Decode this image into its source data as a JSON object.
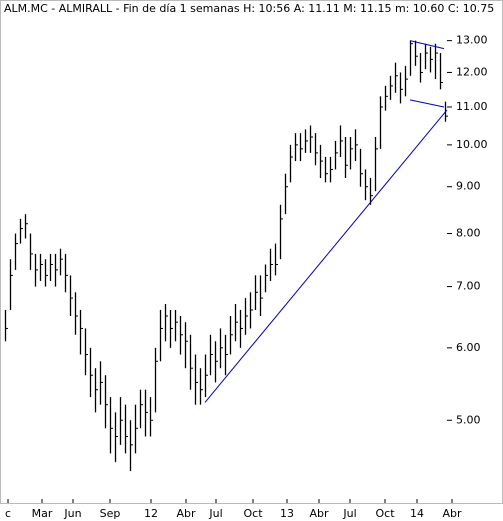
{
  "chart_data": {
    "type": "hlc",
    "title": "ALM.MC - ALMIRALL - Fin de día 1 semanas H: 10:56 A: 11.11 M: 11.15 m: 10.60 C: 10.75",
    "log_scale": true,
    "color": "#000000",
    "xlim": [
      -1,
      89
    ],
    "ylim": [
      4.06,
      14.4
    ],
    "yticks": [
      {
        "value": 5,
        "label": "5.00"
      },
      {
        "value": 6,
        "label": "6.00"
      },
      {
        "value": 7,
        "label": "7.00"
      },
      {
        "value": 8,
        "label": "8.00"
      },
      {
        "value": 9,
        "label": "9.00"
      },
      {
        "value": 10,
        "label": "10.00"
      },
      {
        "value": 11,
        "label": "11.00"
      },
      {
        "value": 12,
        "label": "12.00"
      },
      {
        "value": 13,
        "label": "13.00"
      }
    ],
    "xticks": [
      {
        "value": 0.6,
        "label": "c"
      },
      {
        "value": 7.4,
        "label": "Mar"
      },
      {
        "value": 13.6,
        "label": "Jun"
      },
      {
        "value": 21,
        "label": "Sep"
      },
      {
        "value": 29.2,
        "label": "12"
      },
      {
        "value": 36.2,
        "label": "Abr"
      },
      {
        "value": 42.2,
        "label": "Jul"
      },
      {
        "value": 49.6,
        "label": "Oct"
      },
      {
        "value": 56.4,
        "label": "13"
      },
      {
        "value": 62.8,
        "label": "Abr"
      },
      {
        "value": 69,
        "label": "Jul"
      },
      {
        "value": 76,
        "label": "Oct"
      },
      {
        "value": 82.4,
        "label": "14"
      },
      {
        "value": 89.4,
        "label": "Abr"
      }
    ],
    "high": [
      6.6,
      7.5,
      8.0,
      8.3,
      8.4,
      8.0,
      7.6,
      7.6,
      7.5,
      7.6,
      7.6,
      7.7,
      7.6,
      7.2,
      6.9,
      6.6,
      6.3,
      6.0,
      5.7,
      5.8,
      5.6,
      5.3,
      5.1,
      5.3,
      5.2,
      5.0,
      5.2,
      5.4,
      5.4,
      5.3,
      6.0,
      6.6,
      6.7,
      6.6,
      6.6,
      6.5,
      6.4,
      6.2,
      5.9,
      5.7,
      5.9,
      6.2,
      6.1,
      6.3,
      6.2,
      6.5,
      6.7,
      6.6,
      6.8,
      6.9,
      7.2,
      7.2,
      7.4,
      7.7,
      7.8,
      8.6,
      9.3,
      10.0,
      10.3,
      10.3,
      10.4,
      10.5,
      10.3,
      10.0,
      9.7,
      9.7,
      10.1,
      10.5,
      10.2,
      10.2,
      10.4,
      9.9,
      9.4,
      9.2,
      10.2,
      11.3,
      11.6,
      11.9,
      12.3,
      12.0,
      12.2,
      13.0,
      13.0,
      12.6,
      12.9,
      12.8,
      12.9,
      12.6,
      11.15
    ],
    "low": [
      6.1,
      6.6,
      7.3,
      7.8,
      7.9,
      7.3,
      7.0,
      7.1,
      7.0,
      7.1,
      7.0,
      7.2,
      6.9,
      6.5,
      6.2,
      5.9,
      5.6,
      5.3,
      5.1,
      5.2,
      4.9,
      4.6,
      4.5,
      4.7,
      4.6,
      4.4,
      4.6,
      4.9,
      4.8,
      4.8,
      5.1,
      5.8,
      6.1,
      6.0,
      6.1,
      5.9,
      5.7,
      5.4,
      5.2,
      5.2,
      5.3,
      5.6,
      5.5,
      5.7,
      5.6,
      5.9,
      6.1,
      6.0,
      6.2,
      6.3,
      6.6,
      6.5,
      6.9,
      7.1,
      7.2,
      7.5,
      8.4,
      9.1,
      9.6,
      9.6,
      9.8,
      9.8,
      9.5,
      9.2,
      9.1,
      9.1,
      9.4,
      9.7,
      9.2,
      9.4,
      9.6,
      9.0,
      8.7,
      8.6,
      8.9,
      9.9,
      10.9,
      11.2,
      11.4,
      11.1,
      11.3,
      11.9,
      12.2,
      11.7,
      12.1,
      12.0,
      11.8,
      11.5,
      10.6
    ],
    "close": [
      6.3,
      7.2,
      7.8,
      8.1,
      8.2,
      7.6,
      7.3,
      7.4,
      7.2,
      7.4,
      7.3,
      7.5,
      7.2,
      6.8,
      6.5,
      6.3,
      5.9,
      5.6,
      5.4,
      5.5,
      5.2,
      4.9,
      4.8,
      5.0,
      4.8,
      4.7,
      4.9,
      5.2,
      5.1,
      5.0,
      5.8,
      6.3,
      6.5,
      6.3,
      6.4,
      6.2,
      6.1,
      5.7,
      5.5,
      5.4,
      5.6,
      5.9,
      5.8,
      6.0,
      5.9,
      6.2,
      6.4,
      6.3,
      6.5,
      6.6,
      6.9,
      6.8,
      7.2,
      7.4,
      7.4,
      8.3,
      9.0,
      9.7,
      10.0,
      9.9,
      10.1,
      10.2,
      9.8,
      9.6,
      9.3,
      9.4,
      9.8,
      10.1,
      9.5,
      9.9,
      10.0,
      9.3,
      9.0,
      8.8,
      9.9,
      11.0,
      11.3,
      11.6,
      11.9,
      11.5,
      11.8,
      12.9,
      12.5,
      12.0,
      12.6,
      12.4,
      12.6,
      11.7,
      10.75
    ],
    "trendlines": [
      {
        "color": "#0000cc",
        "x": [
          40,
          88.4
        ],
        "y": [
          5.23,
          10.92
        ]
      },
      {
        "color": "#0000cc",
        "x": [
          81,
          87.8
        ],
        "y": [
          13.0,
          12.74
        ]
      },
      {
        "color": "#0000cc",
        "x": [
          81,
          87.8
        ],
        "y": [
          11.2,
          11.0
        ]
      }
    ]
  }
}
